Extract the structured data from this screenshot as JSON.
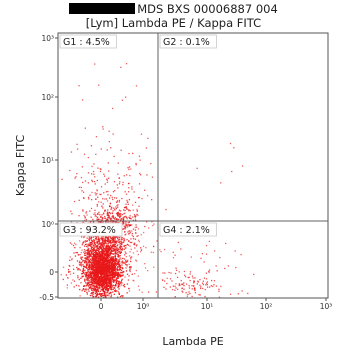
{
  "title": {
    "sample_id_suffix": "MDS BXS 00006887 004",
    "subtitle": "[Lym] Lambda PE / Kappa FITC"
  },
  "colors": {
    "dots": "#e8181a",
    "gates": "#606060",
    "frame": "#555555"
  },
  "chart_data": {
    "type": "scatter",
    "xlabel": "Lambda PE",
    "ylabel": "Kappa FITC",
    "x_scale": "biexponential",
    "y_scale": "biexponential",
    "xlim": [
      -0.5,
      100000
    ],
    "ylim": [
      -0.5,
      1000
    ],
    "x_ticks": [
      "0",
      "10⁰",
      "10¹",
      "10²",
      "10³"
    ],
    "y_ticks": [
      "10³",
      "10²",
      "10¹",
      "10⁰",
      "0",
      "-0.5"
    ],
    "grid": false,
    "quadrant_gate_x": 10,
    "quadrant_gate_y": 1,
    "quadrants": [
      {
        "label": "G1 : 4.5%",
        "name": "G1",
        "percent": 4.5
      },
      {
        "label": "G2 : 0.1%",
        "name": "G2",
        "percent": 0.1
      },
      {
        "label": "G3 : 93.2%",
        "name": "G3",
        "percent": 93.2
      },
      {
        "label": "G4 : 2.1%",
        "name": "G4",
        "percent": 2.1
      }
    ]
  }
}
